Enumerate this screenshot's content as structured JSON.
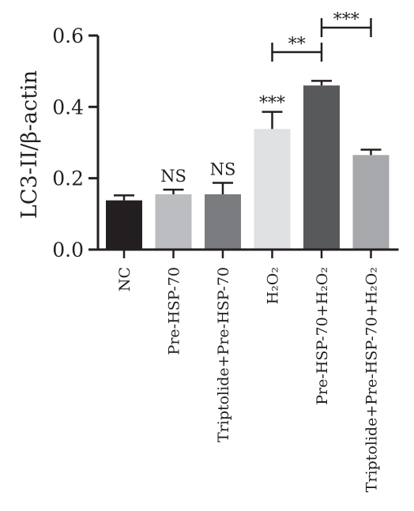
{
  "chart_data": {
    "type": "bar",
    "ylabel": "LC3-II/β-actin",
    "ylim": [
      0,
      0.6
    ],
    "yticks": [
      "0.0",
      "0.2",
      "0.4",
      "0.6"
    ],
    "yticks_values": [
      0,
      0.2,
      0.4,
      0.6
    ],
    "grid": false,
    "categories": [
      "NC",
      "Pre-HSP-70",
      "Triptolide+Pre-HSP-70",
      "H₂O₂",
      "Pre-HSP-70+H₂O₂",
      "Triptolide+Pre-HSP-70+H₂O₂"
    ],
    "values": [
      0.138,
      0.155,
      0.155,
      0.338,
      0.46,
      0.265
    ],
    "errors": [
      0.014,
      0.013,
      0.032,
      0.048,
      0.013,
      0.015
    ],
    "colors": [
      "#231f20",
      "#bcbdc0",
      "#7b7c80",
      "#e0e1e3",
      "#58595b",
      "#a7a8ab"
    ],
    "annotations_above_bars": [
      "",
      "NS",
      "NS",
      "***",
      "",
      ""
    ],
    "comparisons": [
      {
        "from": 3,
        "to": 4,
        "label": "**"
      },
      {
        "from": 4,
        "to": 5,
        "label": "***"
      }
    ]
  }
}
